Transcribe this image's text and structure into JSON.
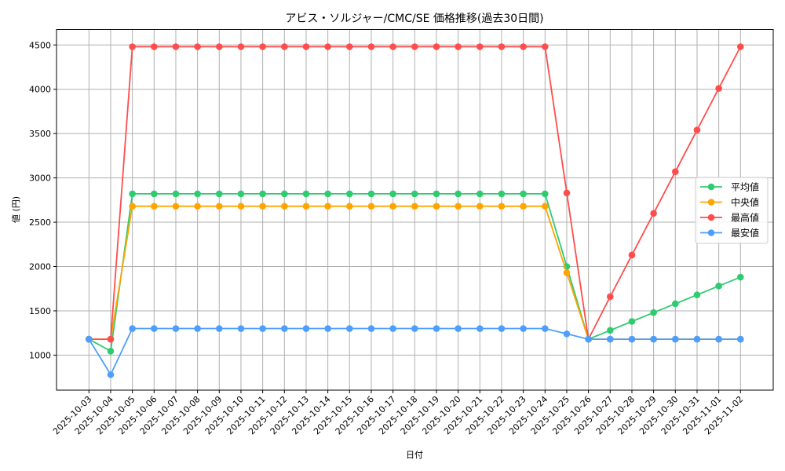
{
  "chart_data": {
    "type": "line",
    "title": "アビス・ソルジャー/CMC/SE 価格推移(過去30日間)",
    "xlabel": "日付",
    "ylabel": "値 (円)",
    "ylim": [
      605,
      4675
    ],
    "yticks": [
      1000,
      1500,
      2000,
      2500,
      3000,
      3500,
      4000,
      4500
    ],
    "grid": true,
    "legend_position": "center right",
    "categories": [
      "2025-10-03",
      "2025-10-04",
      "2025-10-05",
      "2025-10-06",
      "2025-10-07",
      "2025-10-08",
      "2025-10-09",
      "2025-10-10",
      "2025-10-11",
      "2025-10-12",
      "2025-10-13",
      "2025-10-14",
      "2025-10-15",
      "2025-10-16",
      "2025-10-17",
      "2025-10-18",
      "2025-10-19",
      "2025-10-20",
      "2025-10-21",
      "2025-10-22",
      "2025-10-23",
      "2025-10-24",
      "2025-10-25",
      "2025-10-26",
      "2025-10-27",
      "2025-10-28",
      "2025-10-29",
      "2025-10-30",
      "2025-10-31",
      "2025-11-01",
      "2025-11-02"
    ],
    "series": [
      {
        "name": "平均値",
        "color": "#2ecc71",
        "values": [
          1180,
          1045,
          2820,
          2820,
          2820,
          2820,
          2820,
          2820,
          2820,
          2820,
          2820,
          2820,
          2820,
          2820,
          2820,
          2820,
          2820,
          2820,
          2820,
          2820,
          2820,
          2820,
          2000,
          1180,
          1280,
          1380,
          1480,
          1580,
          1680,
          1780,
          1880
        ]
      },
      {
        "name": "中央値",
        "color": "#ffa500",
        "values": [
          1180,
          1180,
          2680,
          2680,
          2680,
          2680,
          2680,
          2680,
          2680,
          2680,
          2680,
          2680,
          2680,
          2680,
          2680,
          2680,
          2680,
          2680,
          2680,
          2680,
          2680,
          2680,
          1930,
          1180,
          1180,
          1180,
          1180,
          1180,
          1180,
          1180,
          1180
        ]
      },
      {
        "name": "最高値",
        "color": "#ff4d4d",
        "values": [
          1180,
          1180,
          4480,
          4480,
          4480,
          4480,
          4480,
          4480,
          4480,
          4480,
          4480,
          4480,
          4480,
          4480,
          4480,
          4480,
          4480,
          4480,
          4480,
          4480,
          4480,
          4480,
          2830,
          1180,
          1660,
          2130,
          2600,
          3070,
          3540,
          4010,
          4480
        ]
      },
      {
        "name": "最安値",
        "color": "#4d9fff",
        "values": [
          1180,
          780,
          1300,
          1300,
          1300,
          1300,
          1300,
          1300,
          1300,
          1300,
          1300,
          1300,
          1300,
          1300,
          1300,
          1300,
          1300,
          1300,
          1300,
          1300,
          1300,
          1300,
          1240,
          1180,
          1180,
          1180,
          1180,
          1180,
          1180,
          1180,
          1180
        ]
      }
    ]
  }
}
